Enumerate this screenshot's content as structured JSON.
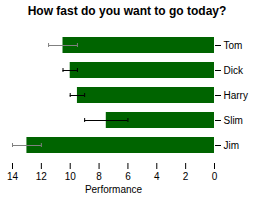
{
  "chart_data": {
    "type": "bar",
    "orientation": "horizontal",
    "title": "How fast do you want to go today?",
    "xlabel": "Performance",
    "categories": [
      "Tom",
      "Dick",
      "Harry",
      "Slim",
      "Jim"
    ],
    "values": [
      10.5,
      10.0,
      9.5,
      7.5,
      13.0
    ],
    "xerr": [
      1.0,
      0.5,
      0.5,
      1.5,
      1.0
    ],
    "xerr_colors": [
      "gray",
      "black",
      "black",
      "black",
      "gray"
    ],
    "color": "#006400",
    "xlim": [
      14,
      0
    ],
    "xticks": [
      0,
      2,
      4,
      6,
      8,
      10,
      12,
      14
    ],
    "grid": false
  }
}
